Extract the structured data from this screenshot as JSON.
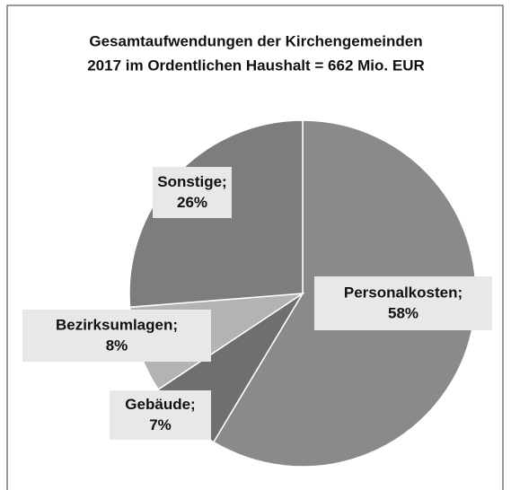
{
  "chart_data": {
    "type": "pie",
    "title": [
      "Gesamtaufwendungen der Kirchengemeinden",
      "2017 im Ordentlichen Haushalt = 662 Mio. EUR"
    ],
    "categories": [
      "Personalkosten;",
      "Gebäude;",
      "Bezirksumlagen;",
      "Sonstige;"
    ],
    "values": [
      58,
      7,
      8,
      26
    ],
    "value_labels": [
      "58%",
      "7%",
      "8%",
      "26%"
    ],
    "colors": [
      "#8a8a8a",
      "#6f6f6f",
      "#b3b3b3",
      "#7d7d7d"
    ]
  }
}
